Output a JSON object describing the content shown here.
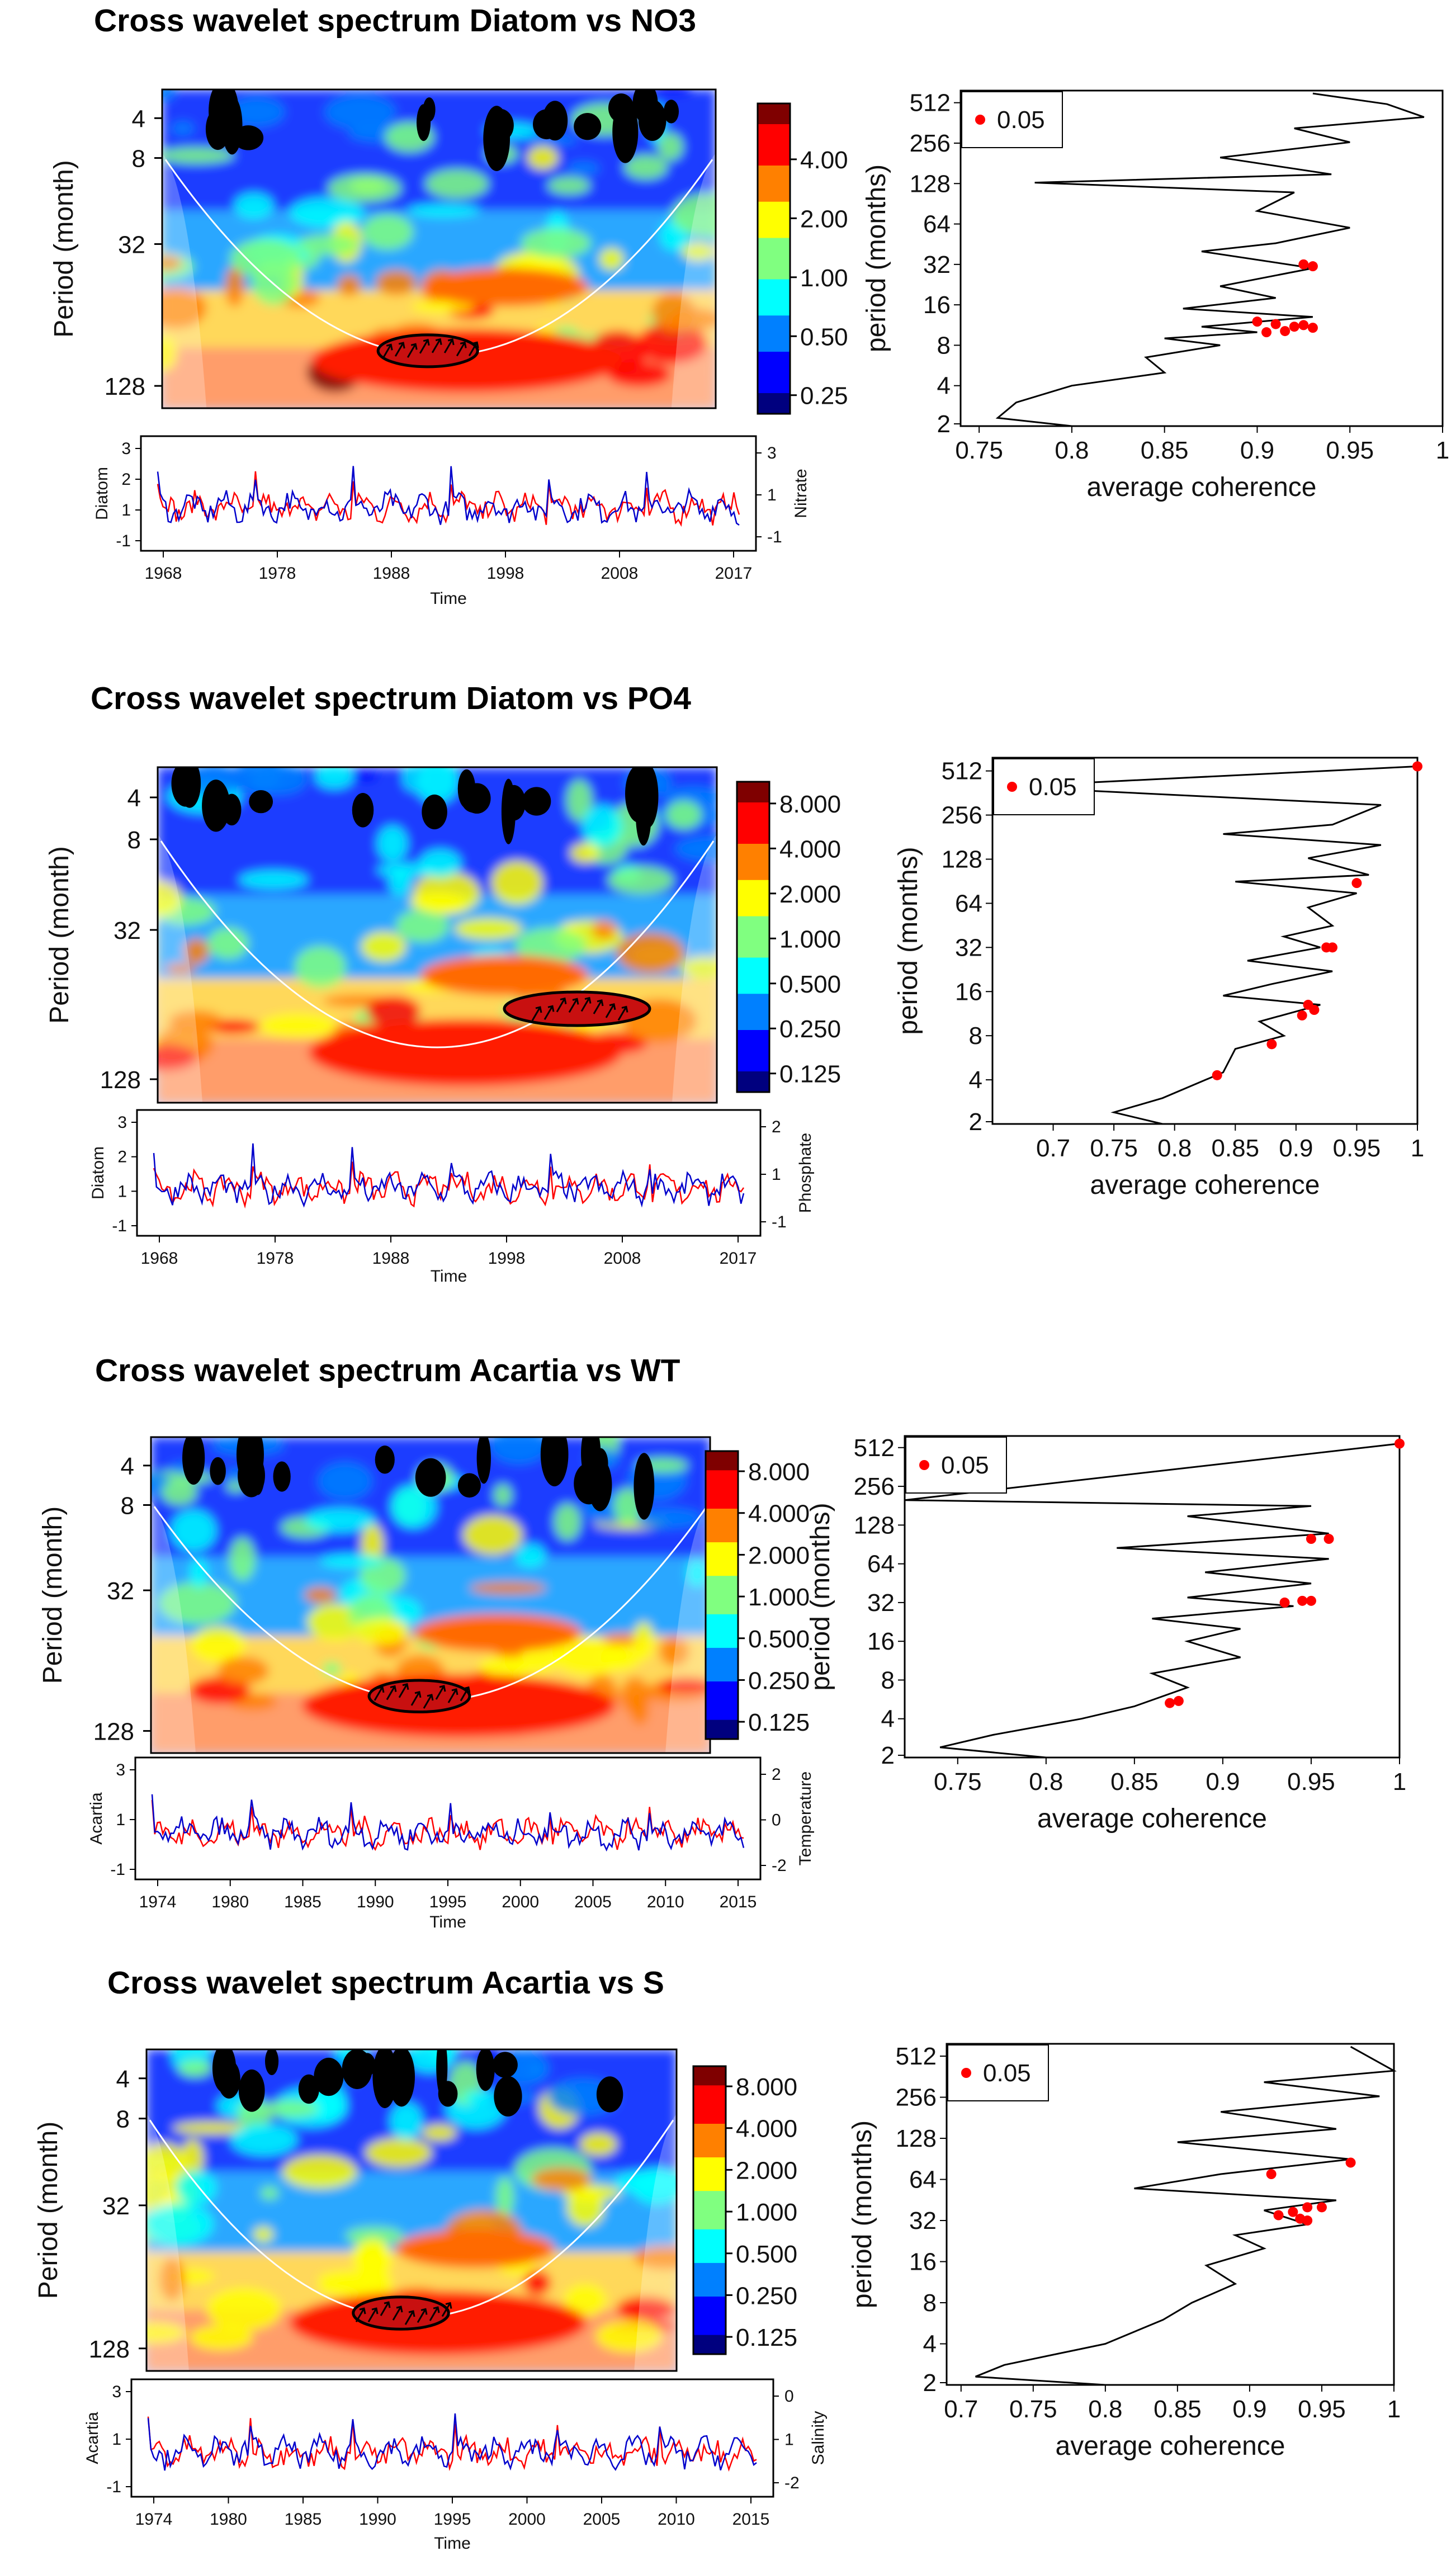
{
  "palette": {
    "red": "#ff0000",
    "blue": "#0000cc",
    "black": "#000000",
    "jet": [
      "#00007f",
      "#0000ff",
      "#0080ff",
      "#00ffff",
      "#80ff80",
      "#ffff00",
      "#ff8000",
      "#ff0000",
      "#7f0000"
    ]
  },
  "legend_label": "0.05",
  "chart_data": [
    {
      "type": "heatmap",
      "title": "Cross wavelet spectrum Diatom vs NO3",
      "ylabel": "Period (month)",
      "yticks": [
        "4",
        "8",
        "32",
        "128"
      ],
      "colorbar_ticks": [
        "4.00",
        "2.00",
        "1.00",
        "0.50",
        "0.25"
      ],
      "series_panel": {
        "left_label": "Diatom",
        "right_label": "Nitrate",
        "left_ticks": [
          "3",
          "2",
          "1",
          "-1"
        ],
        "right_ticks": [
          "3",
          "1",
          "-1"
        ],
        "x_ticks": [
          "1968",
          "1978",
          "1988",
          "1998",
          "2008",
          "2017"
        ],
        "xlabel": "Time"
      },
      "coherence": {
        "type": "line",
        "xlabel": "average coherence",
        "ylabel": "period (months)",
        "x_ticks": [
          "0.75",
          "0.8",
          "0.85",
          "0.9",
          "0.95",
          "1"
        ],
        "xlim": [
          0.74,
          1.0
        ],
        "y_ticks": [
          "512",
          "256",
          "128",
          "64",
          "32",
          "16",
          "8",
          "4",
          "2"
        ],
        "curve": [
          [
            0.93,
            600
          ],
          [
            0.97,
            500
          ],
          [
            0.99,
            400
          ],
          [
            0.92,
            330
          ],
          [
            0.95,
            260
          ],
          [
            0.88,
            200
          ],
          [
            0.94,
            150
          ],
          [
            0.78,
            130
          ],
          [
            0.92,
            110
          ],
          [
            0.9,
            80
          ],
          [
            0.95,
            60
          ],
          [
            0.91,
            46
          ],
          [
            0.87,
            40
          ],
          [
            0.93,
            30
          ],
          [
            0.88,
            22
          ],
          [
            0.91,
            18
          ],
          [
            0.86,
            15
          ],
          [
            0.93,
            13
          ],
          [
            0.87,
            11
          ],
          [
            0.9,
            10
          ],
          [
            0.85,
            9
          ],
          [
            0.88,
            8
          ],
          [
            0.84,
            6.5
          ],
          [
            0.85,
            5
          ],
          [
            0.8,
            4
          ],
          [
            0.77,
            3
          ],
          [
            0.76,
            2.3
          ],
          [
            0.8,
            2
          ]
        ],
        "signif_points": [
          [
            0.925,
            32
          ],
          [
            0.93,
            31
          ],
          [
            0.9,
            12
          ],
          [
            0.91,
            11.5
          ],
          [
            0.92,
            11
          ],
          [
            0.925,
            11.3
          ],
          [
            0.93,
            10.8
          ],
          [
            0.905,
            10
          ],
          [
            0.915,
            10.2
          ]
        ]
      }
    },
    {
      "type": "heatmap",
      "title": "Cross wavelet spectrum Diatom vs PO4",
      "ylabel": "Period (month)",
      "yticks": [
        "4",
        "8",
        "32",
        "128"
      ],
      "colorbar_ticks": [
        "8.000",
        "4.000",
        "2.000",
        "1.000",
        "0.500",
        "0.250",
        "0.125"
      ],
      "series_panel": {
        "left_label": "Diatom",
        "right_label": "Phosphate",
        "left_ticks": [
          "3",
          "2",
          "1",
          "-1"
        ],
        "right_ticks": [
          "2",
          "1",
          "-1"
        ],
        "x_ticks": [
          "1968",
          "1978",
          "1988",
          "1998",
          "2008",
          "2017"
        ],
        "xlabel": "Time"
      },
      "coherence": {
        "type": "line",
        "xlabel": "average coherence",
        "ylabel": "period (months)",
        "x_ticks": [
          "0.7",
          "0.75",
          "0.8",
          "0.85",
          "0.9",
          "0.95",
          "1"
        ],
        "xlim": [
          0.65,
          1.0
        ],
        "y_ticks": [
          "512",
          "256",
          "128",
          "64",
          "32",
          "16",
          "8",
          "4",
          "2"
        ],
        "curve": [
          [
            1.0,
            550
          ],
          [
            0.66,
            400
          ],
          [
            0.97,
            300
          ],
          [
            0.93,
            220
          ],
          [
            0.84,
            190
          ],
          [
            0.97,
            160
          ],
          [
            0.91,
            130
          ],
          [
            0.96,
            100
          ],
          [
            0.85,
            90
          ],
          [
            0.95,
            75
          ],
          [
            0.91,
            60
          ],
          [
            0.93,
            45
          ],
          [
            0.89,
            38
          ],
          [
            0.92,
            32
          ],
          [
            0.86,
            26
          ],
          [
            0.93,
            22
          ],
          [
            0.88,
            18
          ],
          [
            0.84,
            15
          ],
          [
            0.92,
            13
          ],
          [
            0.87,
            10
          ],
          [
            0.89,
            8
          ],
          [
            0.85,
            6.5
          ],
          [
            0.84,
            4.5
          ],
          [
            0.79,
            3
          ],
          [
            0.75,
            2.4
          ],
          [
            0.79,
            2
          ]
        ],
        "signif_points": [
          [
            1.0,
            550
          ],
          [
            0.95,
            88
          ],
          [
            0.925,
            32
          ],
          [
            0.93,
            32
          ],
          [
            0.91,
            13
          ],
          [
            0.915,
            12
          ],
          [
            0.905,
            11
          ],
          [
            0.88,
            7
          ],
          [
            0.835,
            4.3
          ]
        ]
      }
    },
    {
      "type": "heatmap",
      "title": "Cross wavelet spectrum Acartia vs WT",
      "ylabel": "Period (month)",
      "yticks": [
        "4",
        "8",
        "32",
        "128"
      ],
      "colorbar_ticks": [
        "8.000",
        "4.000",
        "2.000",
        "1.000",
        "0.500",
        "0.250",
        "0.125"
      ],
      "series_panel": {
        "left_label": "Acartia",
        "right_label": "Temperature",
        "left_ticks": [
          "3",
          "1",
          "-1"
        ],
        "right_ticks": [
          "2",
          "0",
          "-2"
        ],
        "x_ticks": [
          "1974",
          "1980",
          "1985",
          "1990",
          "1995",
          "2000",
          "2005",
          "2010",
          "2015"
        ],
        "xlabel": "Time"
      },
      "coherence": {
        "type": "line",
        "xlabel": "average coherence",
        "ylabel": "period (months)",
        "x_ticks": [
          "0.75",
          "0.8",
          "0.85",
          "0.9",
          "0.95",
          "1"
        ],
        "xlim": [
          0.72,
          1.0
        ],
        "y_ticks": [
          "512",
          "256",
          "128",
          "64",
          "32",
          "16",
          "8",
          "4",
          "2"
        ],
        "curve": [
          [
            1.0,
            550
          ],
          [
            0.72,
            200
          ],
          [
            0.95,
            180
          ],
          [
            0.88,
            150
          ],
          [
            0.96,
            110
          ],
          [
            0.84,
            85
          ],
          [
            0.96,
            70
          ],
          [
            0.89,
            55
          ],
          [
            0.95,
            45
          ],
          [
            0.88,
            35
          ],
          [
            0.94,
            30
          ],
          [
            0.86,
            24
          ],
          [
            0.91,
            20
          ],
          [
            0.88,
            16
          ],
          [
            0.91,
            12
          ],
          [
            0.86,
            9
          ],
          [
            0.88,
            7
          ],
          [
            0.85,
            5
          ],
          [
            0.82,
            4
          ],
          [
            0.77,
            3
          ],
          [
            0.74,
            2.4
          ],
          [
            0.8,
            2
          ]
        ],
        "signif_points": [
          [
            1.0,
            550
          ],
          [
            0.95,
            100
          ],
          [
            0.96,
            100
          ],
          [
            0.935,
            32
          ],
          [
            0.945,
            33
          ],
          [
            0.95,
            33
          ],
          [
            0.87,
            5.3
          ],
          [
            0.875,
            5.5
          ]
        ]
      }
    },
    {
      "type": "heatmap",
      "title": "Cross wavelet spectrum Acartia vs S",
      "ylabel": "Period (month)",
      "yticks": [
        "4",
        "8",
        "32",
        "128"
      ],
      "colorbar_ticks": [
        "8.000",
        "4.000",
        "2.000",
        "1.000",
        "0.500",
        "0.250",
        "0.125"
      ],
      "series_panel": {
        "left_label": "Acartia",
        "right_label": "Salinity",
        "left_ticks": [
          "3",
          "1",
          "-1"
        ],
        "right_ticks": [
          "0",
          "1",
          "-2"
        ],
        "x_ticks": [
          "1974",
          "1980",
          "1985",
          "1990",
          "1995",
          "2000",
          "2005",
          "2010",
          "2015"
        ],
        "xlabel": "Time"
      },
      "coherence": {
        "type": "line",
        "xlabel": "average coherence",
        "ylabel": "period (months)",
        "x_ticks": [
          "0.7",
          "0.75",
          "0.8",
          "0.85",
          "0.9",
          "0.95",
          "1"
        ],
        "xlim": [
          0.69,
          1.0
        ],
        "y_ticks": [
          "512",
          "256",
          "128",
          "64",
          "32",
          "16",
          "8",
          "4",
          "2"
        ],
        "curve": [
          [
            0.97,
            600
          ],
          [
            1.0,
            400
          ],
          [
            0.91,
            330
          ],
          [
            0.99,
            260
          ],
          [
            0.88,
            200
          ],
          [
            0.96,
            150
          ],
          [
            0.85,
            120
          ],
          [
            0.97,
            90
          ],
          [
            0.88,
            70
          ],
          [
            0.82,
            55
          ],
          [
            0.96,
            45
          ],
          [
            0.91,
            38
          ],
          [
            0.94,
            30
          ],
          [
            0.89,
            25
          ],
          [
            0.91,
            20
          ],
          [
            0.87,
            15
          ],
          [
            0.89,
            11
          ],
          [
            0.86,
            8
          ],
          [
            0.84,
            6
          ],
          [
            0.8,
            4
          ],
          [
            0.73,
            2.8
          ],
          [
            0.71,
            2.3
          ],
          [
            0.8,
            2
          ]
        ],
        "signif_points": [
          [
            0.97,
            85
          ],
          [
            0.915,
            70
          ],
          [
            0.94,
            40
          ],
          [
            0.95,
            40
          ],
          [
            0.93,
            37
          ],
          [
            0.92,
            35
          ],
          [
            0.935,
            33
          ],
          [
            0.94,
            32
          ]
        ]
      }
    }
  ]
}
